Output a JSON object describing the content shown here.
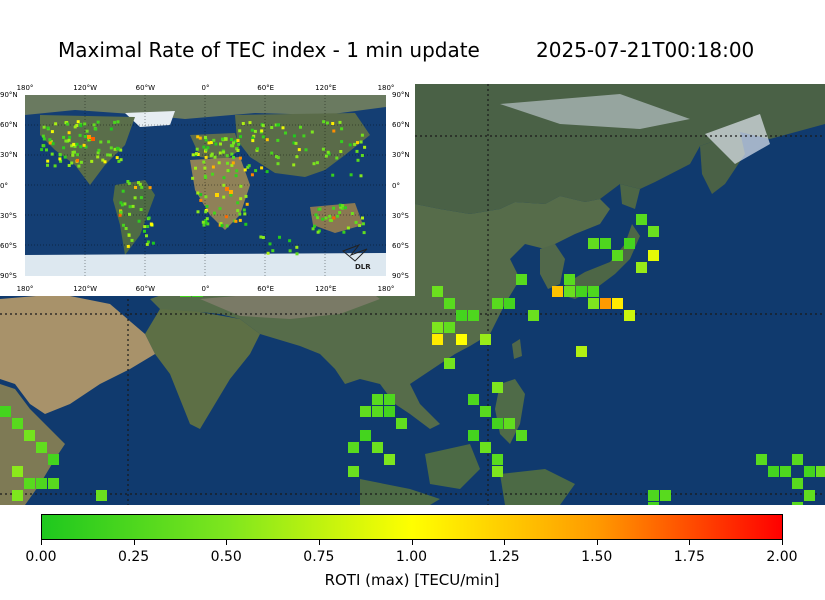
{
  "title": "Maximal Rate of TEC index - 1 min update",
  "timestamp": "2025-07-21T00:18:00",
  "inset": {
    "lon_top": [
      "180°",
      "120°W",
      "60°W",
      "0°",
      "60°E",
      "120°E",
      "180°"
    ],
    "lon_bottom": [
      "180°",
      "120°W",
      "60°W",
      "0°",
      "60°E",
      "120°E",
      "180°"
    ],
    "lat_left": [
      "90°N",
      "60°N",
      "30°N",
      "0°",
      "30°S",
      "60°S",
      "90°S"
    ],
    "lat_right": [
      "90°N",
      "60°N",
      "30°N",
      "0°",
      "30°S",
      "60°S",
      "90°S"
    ],
    "logo_text": "DLR"
  },
  "colorbar": {
    "ticks": [
      "0.00",
      "0.25",
      "0.50",
      "0.75",
      "1.00",
      "1.25",
      "1.50",
      "1.75",
      "2.00"
    ],
    "label": "ROTI (max) [TECU/min]",
    "range": [
      0,
      2
    ],
    "colors": [
      "#1ec81e",
      "#7ee61e",
      "#ffff00",
      "#ff9a00",
      "#ff0000"
    ]
  },
  "map_colors": {
    "ocean": "#103a6e",
    "land": "#4f6747",
    "desert": "#a8926a",
    "snow": "#dfe6ee",
    "gridline": "#1a1a1a"
  }
}
